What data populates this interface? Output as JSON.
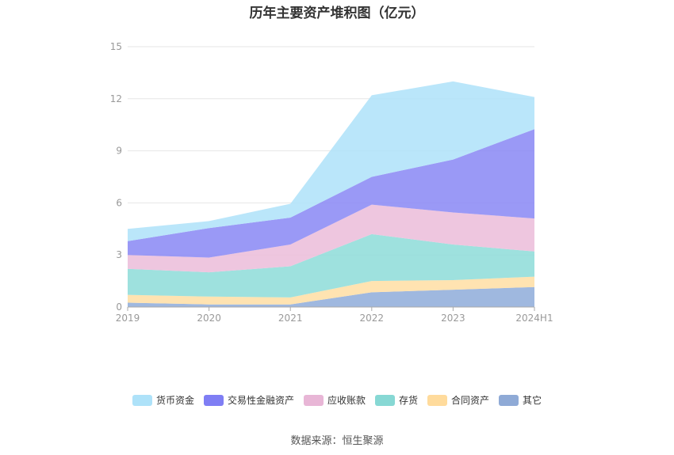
{
  "chart_data": {
    "type": "area",
    "stacked": true,
    "title": "历年主要资产堆积图（亿元）",
    "categories": [
      "2019",
      "2020",
      "2021",
      "2022",
      "2023",
      "2024H1"
    ],
    "ylim": [
      0,
      15
    ],
    "yticks": [
      "0",
      "3",
      "6",
      "9",
      "12",
      "15"
    ],
    "grid": true,
    "legend_position": "bottom",
    "series": [
      {
        "name": "其它",
        "color": "#8eabd9",
        "values": [
          0.25,
          0.15,
          0.15,
          0.85,
          1.0,
          1.15
        ]
      },
      {
        "name": "合同资产",
        "color": "#ffdea3",
        "values": [
          0.45,
          0.45,
          0.4,
          0.65,
          0.55,
          0.6
        ]
      },
      {
        "name": "存货",
        "color": "#8ddcd8",
        "values": [
          1.5,
          1.4,
          1.8,
          2.7,
          2.05,
          1.45
        ]
      },
      {
        "name": "应收账款",
        "color": "#ebbcd9",
        "values": [
          0.8,
          0.85,
          1.25,
          1.7,
          1.85,
          1.9
        ]
      },
      {
        "name": "交易性金融资产",
        "color": "#8887f5",
        "values": [
          0.8,
          1.7,
          1.55,
          1.6,
          3.05,
          5.15
        ]
      },
      {
        "name": "货币资金",
        "color": "#aee2f9",
        "values": [
          0.7,
          0.4,
          0.8,
          4.7,
          4.5,
          1.85
        ]
      }
    ]
  },
  "legend": [
    "货币资金",
    "交易性金融资产",
    "应收账款",
    "存货",
    "合同资产",
    "其它"
  ],
  "source": "数据来源：恒生聚源"
}
